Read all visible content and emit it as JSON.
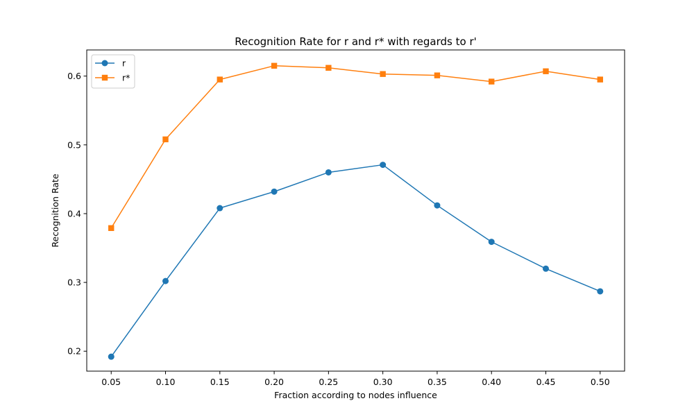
{
  "chart_data": {
    "type": "line",
    "title": "Recognition Rate for r and r* with regards to r'",
    "xlabel": "Fraction according to nodes influence",
    "ylabel": "Recognition Rate",
    "x": [
      0.05,
      0.1,
      0.15,
      0.2,
      0.25,
      0.3,
      0.35,
      0.4,
      0.45,
      0.5
    ],
    "xtick_labels": [
      "0.05",
      "0.10",
      "0.15",
      "0.20",
      "0.25",
      "0.30",
      "0.35",
      "0.40",
      "0.45",
      "0.50"
    ],
    "yticks": [
      0.2,
      0.3,
      0.4,
      0.5,
      0.6
    ],
    "ytick_labels": [
      "0.2",
      "0.3",
      "0.4",
      "0.5",
      "0.6"
    ],
    "xlim": [
      0.0275,
      0.5225
    ],
    "ylim": [
      0.171,
      0.638
    ],
    "grid": false,
    "legend_position": "upper left",
    "series": [
      {
        "name": "r",
        "marker": "circle",
        "color": "#1f77b4",
        "values": [
          0.192,
          0.302,
          0.408,
          0.432,
          0.46,
          0.471,
          0.412,
          0.359,
          0.32,
          0.287
        ]
      },
      {
        "name": "r*",
        "marker": "square",
        "color": "#ff7f0e",
        "values": [
          0.379,
          0.508,
          0.595,
          0.615,
          0.612,
          0.603,
          0.601,
          0.592,
          0.607,
          0.595
        ]
      }
    ]
  }
}
